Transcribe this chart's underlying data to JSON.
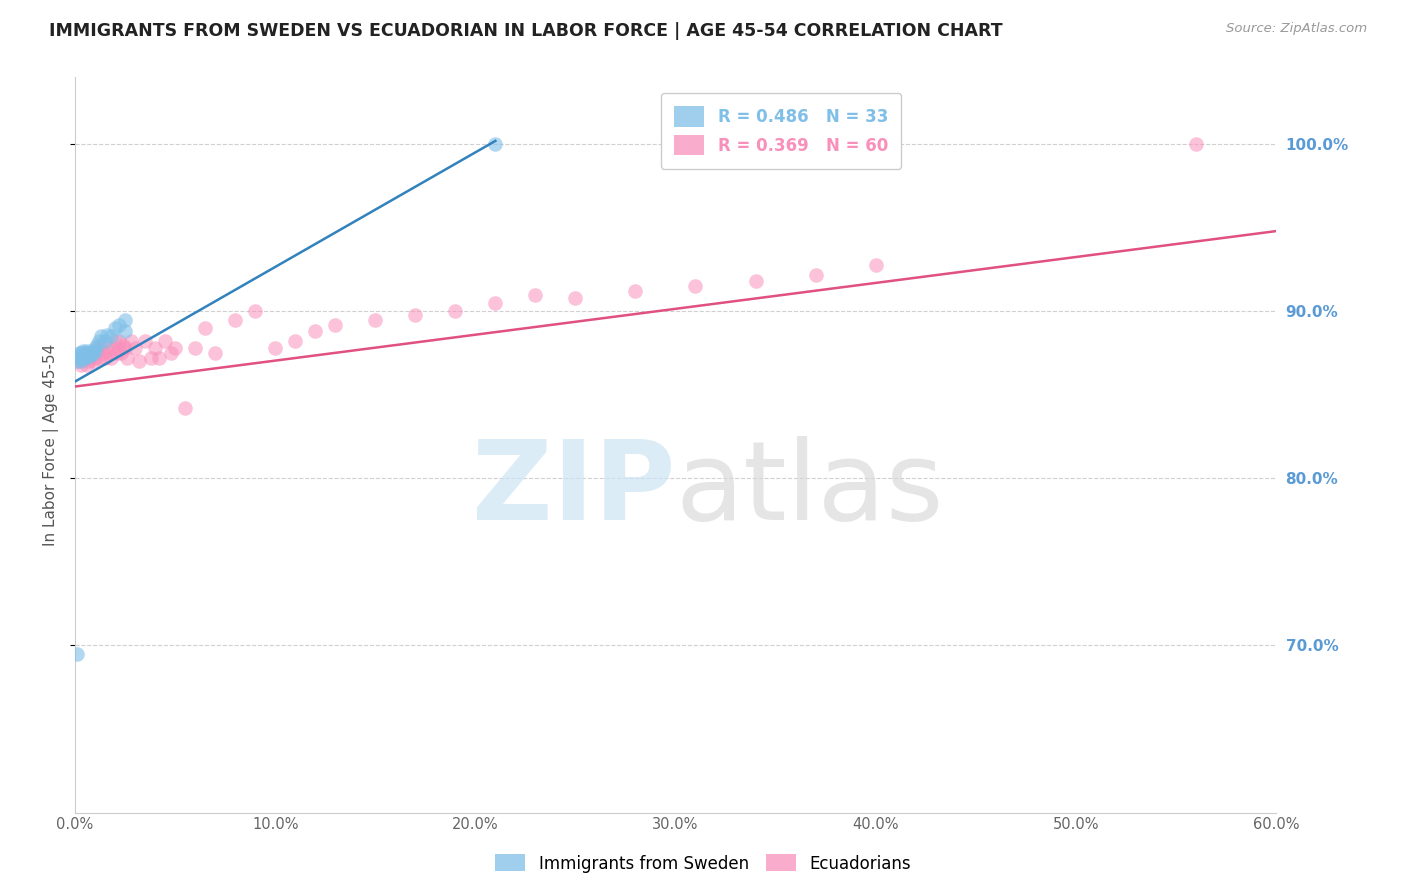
{
  "title": "IMMIGRANTS FROM SWEDEN VS ECUADORIAN IN LABOR FORCE | AGE 45-54 CORRELATION CHART",
  "source": "Source: ZipAtlas.com",
  "ylabel": "In Labor Force | Age 45-54",
  "legend_entries": [
    {
      "label": "R = 0.486   N = 33",
      "color": "#6baed6"
    },
    {
      "label": "R = 0.369   N = 60",
      "color": "#f768a1"
    }
  ],
  "legend_labels_bottom": [
    "Immigrants from Sweden",
    "Ecuadorians"
  ],
  "blue_scatter_x": [
    0.001,
    0.002,
    0.002,
    0.003,
    0.003,
    0.003,
    0.003,
    0.004,
    0.004,
    0.005,
    0.005,
    0.005,
    0.006,
    0.006,
    0.007,
    0.007,
    0.008,
    0.009,
    0.009,
    0.01,
    0.01,
    0.011,
    0.012,
    0.013,
    0.015,
    0.016,
    0.018,
    0.02,
    0.022,
    0.025,
    0.025,
    0.21,
    0.001
  ],
  "blue_scatter_y": [
    0.87,
    0.872,
    0.875,
    0.87,
    0.873,
    0.875,
    0.874,
    0.872,
    0.876,
    0.873,
    0.875,
    0.872,
    0.874,
    0.876,
    0.873,
    0.875,
    0.874,
    0.876,
    0.875,
    0.876,
    0.878,
    0.88,
    0.882,
    0.885,
    0.882,
    0.886,
    0.885,
    0.89,
    0.892,
    0.888,
    0.895,
    1.0,
    0.695
  ],
  "pink_scatter_x": [
    0.002,
    0.003,
    0.004,
    0.005,
    0.006,
    0.007,
    0.007,
    0.008,
    0.009,
    0.01,
    0.011,
    0.012,
    0.012,
    0.013,
    0.014,
    0.015,
    0.016,
    0.017,
    0.018,
    0.019,
    0.02,
    0.021,
    0.022,
    0.022,
    0.023,
    0.024,
    0.025,
    0.026,
    0.028,
    0.03,
    0.032,
    0.035,
    0.038,
    0.04,
    0.042,
    0.045,
    0.048,
    0.05,
    0.055,
    0.06,
    0.065,
    0.07,
    0.08,
    0.09,
    0.1,
    0.11,
    0.12,
    0.13,
    0.15,
    0.17,
    0.19,
    0.21,
    0.23,
    0.25,
    0.28,
    0.31,
    0.34,
    0.37,
    0.4,
    0.56
  ],
  "pink_scatter_y": [
    0.87,
    0.868,
    0.872,
    0.875,
    0.868,
    0.872,
    0.87,
    0.875,
    0.87,
    0.872,
    0.875,
    0.878,
    0.872,
    0.88,
    0.875,
    0.872,
    0.878,
    0.875,
    0.872,
    0.878,
    0.882,
    0.875,
    0.882,
    0.878,
    0.875,
    0.88,
    0.878,
    0.872,
    0.882,
    0.878,
    0.87,
    0.882,
    0.872,
    0.878,
    0.872,
    0.882,
    0.875,
    0.878,
    0.842,
    0.878,
    0.89,
    0.875,
    0.895,
    0.9,
    0.878,
    0.882,
    0.888,
    0.892,
    0.895,
    0.898,
    0.9,
    0.905,
    0.91,
    0.908,
    0.912,
    0.915,
    0.918,
    0.922,
    0.928,
    1.0
  ],
  "blue_line_x": [
    0.0,
    0.21
  ],
  "blue_line_y": [
    0.858,
    1.002
  ],
  "pink_line_x": [
    0.0,
    0.6
  ],
  "pink_line_y": [
    0.855,
    0.948
  ],
  "xlim": [
    0.0,
    0.6
  ],
  "ylim": [
    0.6,
    1.04
  ],
  "right_yticks": [
    0.7,
    0.8,
    0.9,
    1.0
  ],
  "right_yticklabels": [
    "70.0%",
    "80.0%",
    "90.0%",
    "100.0%"
  ],
  "xtick_positions": [
    0.0,
    0.1,
    0.2,
    0.3,
    0.4,
    0.5,
    0.6
  ],
  "xtick_labels": [
    "0.0%",
    "10.0%",
    "20.0%",
    "30.0%",
    "40.0%",
    "50.0%",
    "60.0%"
  ],
  "blue_color": "#7fbfe8",
  "pink_color": "#f890bb",
  "blue_line_color": "#3182bd",
  "pink_line_color": "#e05080",
  "grid_color": "#d0d0d0",
  "title_color": "#222222",
  "right_axis_color": "#5b9bd5",
  "background_color": "#ffffff"
}
